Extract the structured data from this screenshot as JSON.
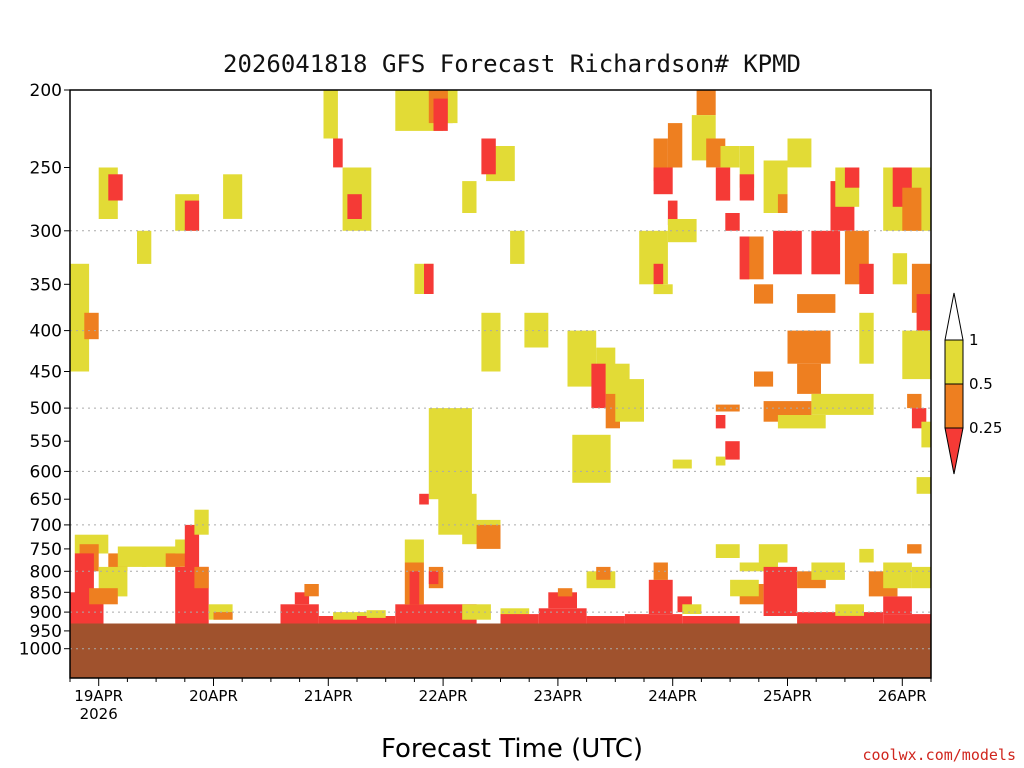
{
  "title": "2026041818 GFS Forecast Richardson# KPMD",
  "xlabel": "Forecast Time (UTC)",
  "credit": "coolwx.com/models",
  "chart_data": {
    "type": "heatmap",
    "title": "2026041818 GFS Forecast Richardson# KPMD",
    "xlabel": "Forecast Time (UTC)",
    "ylabel": "",
    "y_scale": "log",
    "ylim": [
      1000,
      200
    ],
    "y_ticks": [
      200,
      250,
      300,
      350,
      400,
      450,
      500,
      550,
      600,
      650,
      700,
      750,
      800,
      850,
      900,
      950,
      1000
    ],
    "y_grid_levels": [
      300,
      400,
      500,
      600,
      700,
      800,
      900,
      1000
    ],
    "grid": true,
    "x_start_hour": 18,
    "x_day_ticks": [
      "19APR",
      "20APR",
      "21APR",
      "22APR",
      "23APR",
      "24APR",
      "25APR",
      "26APR"
    ],
    "x_sublabel": "2026",
    "xlim_hours": [
      0,
      180
    ],
    "surface_pressure_mb": 930,
    "colorbar": {
      "ticks": [
        "1",
        "0.5",
        "0.25"
      ],
      "bins": [
        {
          "range": "0.5-1",
          "color": "#e2db36"
        },
        {
          "range": "0.25-0.5",
          "color": "#ee7f20"
        },
        {
          "range": "<0.25",
          "color": "#f53a36"
        }
      ],
      "upper_color": "#ffffff"
    },
    "ground_color": "#a0522d",
    "regions": [
      {
        "class": "y",
        "t0": 0,
        "t1": 4,
        "p0": 330,
        "p1": 450
      },
      {
        "class": "o",
        "t0": 3,
        "t1": 6,
        "p0": 380,
        "p1": 410
      },
      {
        "class": "y",
        "t0": 6,
        "t1": 10,
        "p0": 250,
        "p1": 290
      },
      {
        "class": "r",
        "t0": 8,
        "t1": 11,
        "p0": 255,
        "p1": 275
      },
      {
        "class": "y",
        "t0": 14,
        "t1": 17,
        "p0": 300,
        "p1": 330
      },
      {
        "class": "y",
        "t0": 22,
        "t1": 27,
        "p0": 270,
        "p1": 300
      },
      {
        "class": "r",
        "t0": 24,
        "t1": 27,
        "p0": 275,
        "p1": 300
      },
      {
        "class": "y",
        "t0": 32,
        "t1": 36,
        "p0": 255,
        "p1": 290
      },
      {
        "class": "y",
        "t0": 53,
        "t1": 56,
        "p0": 200,
        "p1": 230
      },
      {
        "class": "r",
        "t0": 55,
        "t1": 57,
        "p0": 230,
        "p1": 250
      },
      {
        "class": "y",
        "t0": 57,
        "t1": 63,
        "p0": 250,
        "p1": 300
      },
      {
        "class": "r",
        "t0": 58,
        "t1": 61,
        "p0": 270,
        "p1": 290
      },
      {
        "class": "y",
        "t0": 68,
        "t1": 78,
        "p0": 200,
        "p1": 225
      },
      {
        "class": "o",
        "t0": 75,
        "t1": 80,
        "p0": 200,
        "p1": 220
      },
      {
        "class": "r",
        "t0": 76,
        "t1": 79,
        "p0": 205,
        "p1": 225
      },
      {
        "class": "y",
        "t0": 79,
        "t1": 81,
        "p0": 200,
        "p1": 220
      },
      {
        "class": "y",
        "t0": 72,
        "t1": 76,
        "p0": 330,
        "p1": 360
      },
      {
        "class": "r",
        "t0": 74,
        "t1": 76,
        "p0": 330,
        "p1": 360
      },
      {
        "class": "y",
        "t0": 87,
        "t1": 93,
        "p0": 235,
        "p1": 260
      },
      {
        "class": "r",
        "t0": 86,
        "t1": 89,
        "p0": 230,
        "p1": 255
      },
      {
        "class": "y",
        "t0": 82,
        "t1": 85,
        "p0": 260,
        "p1": 285
      },
      {
        "class": "y",
        "t0": 86,
        "t1": 90,
        "p0": 380,
        "p1": 450
      },
      {
        "class": "y",
        "t0": 92,
        "t1": 95,
        "p0": 300,
        "p1": 330
      },
      {
        "class": "y",
        "t0": 104,
        "t1": 110,
        "p0": 400,
        "p1": 470
      },
      {
        "class": "y",
        "t0": 95,
        "t1": 100,
        "p0": 380,
        "p1": 420
      },
      {
        "class": "y",
        "t0": 110,
        "t1": 114,
        "p0": 420,
        "p1": 480
      },
      {
        "class": "r",
        "t0": 109,
        "t1": 112,
        "p0": 440,
        "p1": 500
      },
      {
        "class": "o",
        "t0": 112,
        "t1": 115,
        "p0": 470,
        "p1": 530
      },
      {
        "class": "y",
        "t0": 112,
        "t1": 117,
        "p0": 440,
        "p1": 480
      },
      {
        "class": "y",
        "t0": 105,
        "t1": 113,
        "p0": 540,
        "p1": 620
      },
      {
        "class": "y",
        "t0": 114,
        "t1": 120,
        "p0": 460,
        "p1": 520
      },
      {
        "class": "y",
        "t0": 75,
        "t1": 84,
        "p0": 500,
        "p1": 650
      },
      {
        "class": "y",
        "t0": 77,
        "t1": 85,
        "p0": 640,
        "p1": 720
      },
      {
        "class": "y",
        "t0": 82,
        "t1": 90,
        "p0": 690,
        "p1": 740
      },
      {
        "class": "o",
        "t0": 85,
        "t1": 90,
        "p0": 700,
        "p1": 750
      },
      {
        "class": "r",
        "t0": 73,
        "t1": 75,
        "p0": 640,
        "p1": 660
      },
      {
        "class": "y",
        "t0": 119,
        "t1": 125,
        "p0": 300,
        "p1": 350
      },
      {
        "class": "o",
        "t0": 122,
        "t1": 125,
        "p0": 230,
        "p1": 260
      },
      {
        "class": "r",
        "t0": 122,
        "t1": 126,
        "p0": 250,
        "p1": 270
      },
      {
        "class": "o",
        "t0": 125,
        "t1": 128,
        "p0": 220,
        "p1": 250
      },
      {
        "class": "r",
        "t0": 125,
        "t1": 127,
        "p0": 275,
        "p1": 295
      },
      {
        "class": "y",
        "t0": 125,
        "t1": 131,
        "p0": 290,
        "p1": 310
      },
      {
        "class": "r",
        "t0": 122,
        "t1": 124,
        "p0": 330,
        "p1": 350
      },
      {
        "class": "y",
        "t0": 122,
        "t1": 126,
        "p0": 350,
        "p1": 360
      },
      {
        "class": "o",
        "t0": 131,
        "t1": 135,
        "p0": 200,
        "p1": 215
      },
      {
        "class": "y",
        "t0": 130,
        "t1": 135,
        "p0": 215,
        "p1": 245
      },
      {
        "class": "o",
        "t0": 133,
        "t1": 137,
        "p0": 230,
        "p1": 250
      },
      {
        "class": "r",
        "t0": 135,
        "t1": 138,
        "p0": 250,
        "p1": 275
      },
      {
        "class": "y",
        "t0": 136,
        "t1": 140,
        "p0": 235,
        "p1": 250
      },
      {
        "class": "y",
        "t0": 140,
        "t1": 143,
        "p0": 235,
        "p1": 265
      },
      {
        "class": "r",
        "t0": 140,
        "t1": 143,
        "p0": 255,
        "p1": 275
      },
      {
        "class": "r",
        "t0": 137,
        "t1": 140,
        "p0": 285,
        "p1": 300
      },
      {
        "class": "y",
        "t0": 145,
        "t1": 150,
        "p0": 245,
        "p1": 285
      },
      {
        "class": "o",
        "t0": 148,
        "t1": 150,
        "p0": 270,
        "p1": 285
      },
      {
        "class": "y",
        "t0": 150,
        "t1": 155,
        "p0": 230,
        "p1": 250
      },
      {
        "class": "o",
        "t0": 140,
        "t1": 145,
        "p0": 305,
        "p1": 345
      },
      {
        "class": "r",
        "t0": 140,
        "t1": 142,
        "p0": 305,
        "p1": 345
      },
      {
        "class": "o",
        "t0": 143,
        "t1": 147,
        "p0": 350,
        "p1": 370
      },
      {
        "class": "r",
        "t0": 147,
        "t1": 153,
        "p0": 300,
        "p1": 340
      },
      {
        "class": "o",
        "t0": 152,
        "t1": 160,
        "p0": 360,
        "p1": 380
      },
      {
        "class": "r",
        "t0": 155,
        "t1": 161,
        "p0": 300,
        "p1": 340
      },
      {
        "class": "r",
        "t0": 159,
        "t1": 164,
        "p0": 260,
        "p1": 300
      },
      {
        "class": "y",
        "t0": 160,
        "t1": 165,
        "p0": 250,
        "p1": 280
      },
      {
        "class": "r",
        "t0": 162,
        "t1": 165,
        "p0": 250,
        "p1": 265
      },
      {
        "class": "o",
        "t0": 162,
        "t1": 167,
        "p0": 300,
        "p1": 350
      },
      {
        "class": "r",
        "t0": 165,
        "t1": 168,
        "p0": 330,
        "p1": 360
      },
      {
        "class": "y",
        "t0": 165,
        "t1": 168,
        "p0": 380,
        "p1": 440
      },
      {
        "class": "o",
        "t0": 150,
        "t1": 159,
        "p0": 400,
        "p1": 440
      },
      {
        "class": "o",
        "t0": 152,
        "t1": 157,
        "p0": 440,
        "p1": 480
      },
      {
        "class": "y",
        "t0": 155,
        "t1": 168,
        "p0": 480,
        "p1": 510
      },
      {
        "class": "o",
        "t0": 145,
        "t1": 155,
        "p0": 490,
        "p1": 520
      },
      {
        "class": "y",
        "t0": 148,
        "t1": 158,
        "p0": 510,
        "p1": 530
      },
      {
        "class": "o",
        "t0": 143,
        "t1": 147,
        "p0": 450,
        "p1": 470
      },
      {
        "class": "r",
        "t0": 135,
        "t1": 137,
        "p0": 510,
        "p1": 530
      },
      {
        "class": "r",
        "t0": 137,
        "t1": 140,
        "p0": 550,
        "p1": 580
      },
      {
        "class": "y",
        "t0": 135,
        "t1": 137,
        "p0": 575,
        "p1": 590
      },
      {
        "class": "o",
        "t0": 135,
        "t1": 140,
        "p0": 495,
        "p1": 505
      },
      {
        "class": "y",
        "t0": 126,
        "t1": 130,
        "p0": 580,
        "p1": 595
      },
      {
        "class": "y",
        "t0": 135,
        "t1": 140,
        "p0": 740,
        "p1": 770
      },
      {
        "class": "y",
        "t0": 144,
        "t1": 150,
        "p0": 740,
        "p1": 780
      },
      {
        "class": "y",
        "t0": 140,
        "t1": 148,
        "p0": 780,
        "p1": 800
      },
      {
        "class": "y",
        "t0": 165,
        "t1": 168,
        "p0": 750,
        "p1": 780
      },
      {
        "class": "y",
        "t0": 1,
        "t1": 8,
        "p0": 720,
        "p1": 760
      },
      {
        "class": "o",
        "t0": 2,
        "t1": 6,
        "p0": 740,
        "p1": 800
      },
      {
        "class": "r",
        "t0": 1,
        "t1": 5,
        "p0": 760,
        "p1": 900
      },
      {
        "class": "r",
        "t0": 0,
        "t1": 7,
        "p0": 850,
        "p1": 930
      },
      {
        "class": "o",
        "t0": 8,
        "t1": 12,
        "p0": 760,
        "p1": 800
      },
      {
        "class": "y",
        "t0": 10,
        "t1": 16,
        "p0": 745,
        "p1": 790
      },
      {
        "class": "y",
        "t0": 6,
        "t1": 12,
        "p0": 790,
        "p1": 860
      },
      {
        "class": "o",
        "t0": 4,
        "t1": 10,
        "p0": 840,
        "p1": 880
      },
      {
        "class": "y",
        "t0": 15,
        "t1": 23,
        "p0": 745,
        "p1": 790
      },
      {
        "class": "o",
        "t0": 20,
        "t1": 25,
        "p0": 760,
        "p1": 790
      },
      {
        "class": "y",
        "t0": 22,
        "t1": 26,
        "p0": 730,
        "p1": 760
      },
      {
        "class": "r",
        "t0": 24,
        "t1": 27,
        "p0": 700,
        "p1": 800
      },
      {
        "class": "r",
        "t0": 22,
        "t1": 29,
        "p0": 790,
        "p1": 930
      },
      {
        "class": "o",
        "t0": 26,
        "t1": 29,
        "p0": 790,
        "p1": 840
      },
      {
        "class": "y",
        "t0": 26,
        "t1": 29,
        "p0": 670,
        "p1": 720
      },
      {
        "class": "y",
        "t0": 29,
        "t1": 34,
        "p0": 880,
        "p1": 920
      },
      {
        "class": "o",
        "t0": 30,
        "t1": 34,
        "p0": 900,
        "p1": 920
      },
      {
        "class": "r",
        "t0": 44,
        "t1": 52,
        "p0": 880,
        "p1": 930
      },
      {
        "class": "r",
        "t0": 47,
        "t1": 50,
        "p0": 850,
        "p1": 880
      },
      {
        "class": "o",
        "t0": 49,
        "t1": 52,
        "p0": 830,
        "p1": 860
      },
      {
        "class": "r",
        "t0": 52,
        "t1": 60,
        "p0": 910,
        "p1": 930
      },
      {
        "class": "y",
        "t0": 55,
        "t1": 62,
        "p0": 900,
        "p1": 920
      },
      {
        "class": "r",
        "t0": 60,
        "t1": 68,
        "p0": 910,
        "p1": 930
      },
      {
        "class": "y",
        "t0": 62,
        "t1": 66,
        "p0": 895,
        "p1": 915
      },
      {
        "class": "r",
        "t0": 68,
        "t1": 85,
        "p0": 880,
        "p1": 930
      },
      {
        "class": "o",
        "t0": 70,
        "t1": 74,
        "p0": 780,
        "p1": 880
      },
      {
        "class": "y",
        "t0": 70,
        "t1": 74,
        "p0": 730,
        "p1": 780
      },
      {
        "class": "r",
        "t0": 71,
        "t1": 73,
        "p0": 800,
        "p1": 880
      },
      {
        "class": "o",
        "t0": 75,
        "t1": 78,
        "p0": 790,
        "p1": 840
      },
      {
        "class": "r",
        "t0": 75,
        "t1": 77,
        "p0": 800,
        "p1": 830
      },
      {
        "class": "y",
        "t0": 82,
        "t1": 88,
        "p0": 880,
        "p1": 920
      },
      {
        "class": "y",
        "t0": 90,
        "t1": 96,
        "p0": 890,
        "p1": 920
      },
      {
        "class": "r",
        "t0": 90,
        "t1": 98,
        "p0": 905,
        "p1": 935
      },
      {
        "class": "r",
        "t0": 98,
        "t1": 108,
        "p0": 890,
        "p1": 935
      },
      {
        "class": "r",
        "t0": 100,
        "t1": 106,
        "p0": 850,
        "p1": 890
      },
      {
        "class": "o",
        "t0": 102,
        "t1": 105,
        "p0": 840,
        "p1": 860
      },
      {
        "class": "r",
        "t0": 108,
        "t1": 116,
        "p0": 910,
        "p1": 935
      },
      {
        "class": "y",
        "t0": 108,
        "t1": 114,
        "p0": 800,
        "p1": 840
      },
      {
        "class": "o",
        "t0": 110,
        "t1": 113,
        "p0": 790,
        "p1": 820
      },
      {
        "class": "r",
        "t0": 116,
        "t1": 128,
        "p0": 905,
        "p1": 930
      },
      {
        "class": "r",
        "t0": 121,
        "t1": 126,
        "p0": 820,
        "p1": 905
      },
      {
        "class": "o",
        "t0": 122,
        "t1": 125,
        "p0": 780,
        "p1": 820
      },
      {
        "class": "r",
        "t0": 127,
        "t1": 130,
        "p0": 860,
        "p1": 900
      },
      {
        "class": "y",
        "t0": 128,
        "t1": 132,
        "p0": 880,
        "p1": 905
      },
      {
        "class": "r",
        "t0": 128,
        "t1": 140,
        "p0": 910,
        "p1": 930
      },
      {
        "class": "o",
        "t0": 140,
        "t1": 145,
        "p0": 830,
        "p1": 880
      },
      {
        "class": "y",
        "t0": 138,
        "t1": 144,
        "p0": 820,
        "p1": 860
      },
      {
        "class": "r",
        "t0": 145,
        "t1": 152,
        "p0": 790,
        "p1": 910
      },
      {
        "class": "o",
        "t0": 152,
        "t1": 158,
        "p0": 800,
        "p1": 840
      },
      {
        "class": "y",
        "t0": 155,
        "t1": 162,
        "p0": 780,
        "p1": 820
      },
      {
        "class": "r",
        "t0": 152,
        "t1": 170,
        "p0": 900,
        "p1": 930
      },
      {
        "class": "y",
        "t0": 160,
        "t1": 166,
        "p0": 880,
        "p1": 910
      },
      {
        "class": "o",
        "t0": 167,
        "t1": 173,
        "p0": 800,
        "p1": 860
      },
      {
        "class": "y",
        "t0": 170,
        "t1": 176,
        "p0": 780,
        "p1": 840
      },
      {
        "class": "r",
        "t0": 170,
        "t1": 176,
        "p0": 860,
        "p1": 905
      },
      {
        "class": "r",
        "t0": 170,
        "t1": 180,
        "p0": 905,
        "p1": 930
      },
      {
        "class": "o",
        "t0": 175,
        "t1": 178,
        "p0": 740,
        "p1": 760
      },
      {
        "class": "y",
        "t0": 176,
        "t1": 180,
        "p0": 790,
        "p1": 840
      },
      {
        "class": "y",
        "t0": 170,
        "t1": 180,
        "p0": 250,
        "p1": 300
      },
      {
        "class": "r",
        "t0": 172,
        "t1": 176,
        "p0": 250,
        "p1": 280
      },
      {
        "class": "o",
        "t0": 174,
        "t1": 178,
        "p0": 265,
        "p1": 300
      },
      {
        "class": "y",
        "t0": 172,
        "t1": 175,
        "p0": 320,
        "p1": 350
      },
      {
        "class": "o",
        "t0": 176,
        "t1": 180,
        "p0": 330,
        "p1": 380
      },
      {
        "class": "r",
        "t0": 177,
        "t1": 180,
        "p0": 360,
        "p1": 400
      },
      {
        "class": "y",
        "t0": 174,
        "t1": 180,
        "p0": 400,
        "p1": 460
      },
      {
        "class": "o",
        "t0": 175,
        "t1": 178,
        "p0": 480,
        "p1": 500
      },
      {
        "class": "r",
        "t0": 176,
        "t1": 179,
        "p0": 500,
        "p1": 530
      },
      {
        "class": "y",
        "t0": 178,
        "t1": 180,
        "p0": 520,
        "p1": 560
      },
      {
        "class": "y",
        "t0": 177,
        "t1": 180,
        "p0": 610,
        "p1": 640
      }
    ]
  }
}
